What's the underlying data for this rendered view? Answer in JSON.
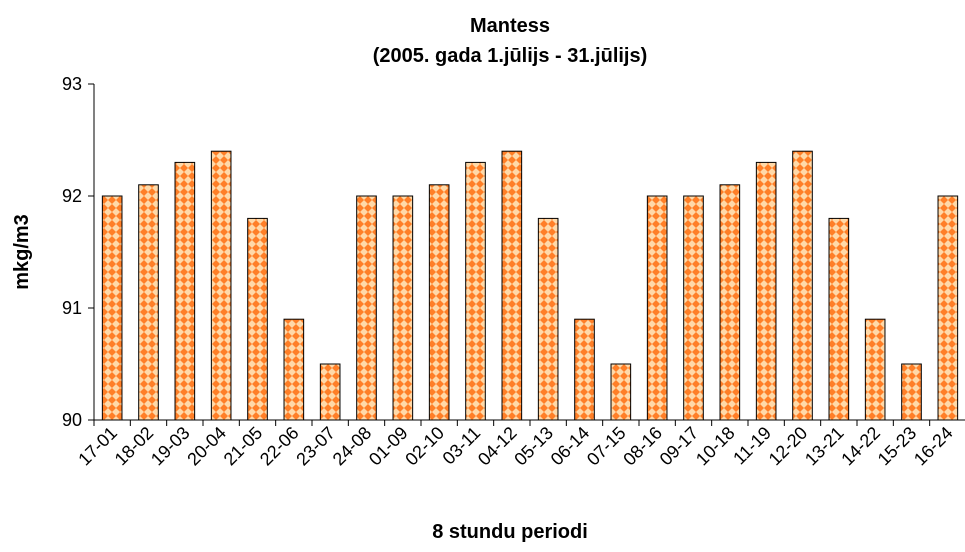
{
  "chart_data": {
    "type": "bar",
    "title": "Mantess",
    "subtitle": "(2005. gada 1.jūlijs - 31.jūlijs)",
    "xlabel": "8 stundu periodi",
    "ylabel": "mkg/m3",
    "ylim": [
      90,
      93
    ],
    "yticks": [
      "90",
      "91",
      "92",
      "93"
    ],
    "grid": false,
    "categories": [
      "17-01",
      "18-02",
      "19-03",
      "20-04",
      "21-05",
      "22-06",
      "23-07",
      "24-08",
      "01-09",
      "02-10",
      "03-11",
      "04-12",
      "05-13",
      "06-14",
      "07-15",
      "08-16",
      "09-17",
      "10-18",
      "11-19",
      "12-20",
      "13-21",
      "14-22",
      "15-23",
      "16-24"
    ],
    "values": [
      92.0,
      92.1,
      92.3,
      92.4,
      91.8,
      90.9,
      90.5,
      92.0,
      92.0,
      92.1,
      92.3,
      92.4,
      91.8,
      90.9,
      90.5,
      92.0,
      92.0,
      92.1,
      92.3,
      92.4,
      91.8,
      90.9,
      90.5,
      92.0
    ],
    "bar_fill": "#ff7f27",
    "bar_pattern_color": "#ffd9a8",
    "bar_edge": "#000000"
  }
}
